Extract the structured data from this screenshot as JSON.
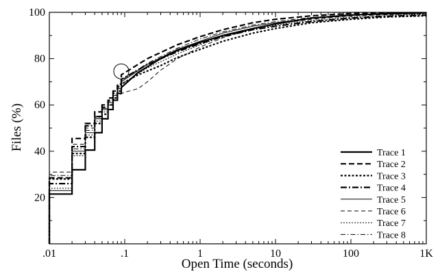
{
  "chart_data": {
    "type": "line",
    "title": "",
    "xlabel": "Open Time (seconds)",
    "ylabel": "Files (%)",
    "x_scale": "log",
    "xlim": [
      0.01,
      1000
    ],
    "ylim": [
      0,
      100
    ],
    "x_ticks": [
      {
        "value": 0.01,
        "label": ".01"
      },
      {
        "value": 0.1,
        "label": ".1"
      },
      {
        "value": 1,
        "label": "1"
      },
      {
        "value": 10,
        "label": "10"
      },
      {
        "value": 100,
        "label": "100"
      },
      {
        "value": 1000,
        "label": "1K"
      }
    ],
    "y_ticks": [
      {
        "value": 20,
        "label": "20"
      },
      {
        "value": 40,
        "label": "40"
      },
      {
        "value": 60,
        "label": "60"
      },
      {
        "value": 80,
        "label": "80"
      },
      {
        "value": 100,
        "label": "100"
      }
    ],
    "grid": false,
    "legend_position": "bottom-right",
    "annotation": {
      "type": "circle",
      "x": 0.09,
      "y": 74.5
    },
    "series": [
      {
        "name": "Trace 1",
        "style": "solid",
        "weight": "thick",
        "points": [
          [
            0.01,
            0
          ],
          [
            0.01,
            21.5
          ],
          [
            0.02,
            21.5
          ],
          [
            0.02,
            32
          ],
          [
            0.03,
            32
          ],
          [
            0.03,
            40.5
          ],
          [
            0.04,
            40.5
          ],
          [
            0.04,
            48
          ],
          [
            0.05,
            48
          ],
          [
            0.05,
            54
          ],
          [
            0.06,
            54
          ],
          [
            0.06,
            58
          ],
          [
            0.07,
            58
          ],
          [
            0.07,
            62
          ],
          [
            0.08,
            62
          ],
          [
            0.08,
            65
          ],
          [
            0.09,
            65
          ],
          [
            0.09,
            67.5
          ],
          [
            0.15,
            74
          ],
          [
            0.3,
            80
          ],
          [
            0.5,
            83.5
          ],
          [
            1,
            87
          ],
          [
            2,
            90
          ],
          [
            5,
            93
          ],
          [
            10,
            95
          ],
          [
            30,
            97.5
          ],
          [
            100,
            98.8
          ],
          [
            300,
            99.5
          ],
          [
            1000,
            99.8
          ]
        ]
      },
      {
        "name": "Trace 2",
        "style": "dashed",
        "weight": "thick",
        "points": [
          [
            0.01,
            0
          ],
          [
            0.01,
            28.5
          ],
          [
            0.02,
            28.5
          ],
          [
            0.02,
            45.5
          ],
          [
            0.03,
            45.5
          ],
          [
            0.03,
            52
          ],
          [
            0.04,
            52
          ],
          [
            0.04,
            57
          ],
          [
            0.05,
            57
          ],
          [
            0.05,
            60
          ],
          [
            0.06,
            60
          ],
          [
            0.06,
            63
          ],
          [
            0.07,
            63
          ],
          [
            0.07,
            66
          ],
          [
            0.08,
            66
          ],
          [
            0.08,
            69
          ],
          [
            0.09,
            69
          ],
          [
            0.09,
            73
          ],
          [
            0.2,
            80
          ],
          [
            0.5,
            86
          ],
          [
            1,
            89.5
          ],
          [
            2,
            92.5
          ],
          [
            5,
            95.5
          ],
          [
            10,
            97
          ],
          [
            30,
            98.5
          ],
          [
            100,
            99.5
          ],
          [
            1000,
            99.8
          ]
        ]
      },
      {
        "name": "Trace 3",
        "style": "dotted",
        "weight": "thick",
        "points": [
          [
            0.01,
            0
          ],
          [
            0.01,
            28
          ],
          [
            0.02,
            28
          ],
          [
            0.02,
            39
          ],
          [
            0.03,
            39
          ],
          [
            0.03,
            46
          ],
          [
            0.04,
            46
          ],
          [
            0.04,
            52
          ],
          [
            0.05,
            52
          ],
          [
            0.05,
            56
          ],
          [
            0.06,
            56
          ],
          [
            0.06,
            60
          ],
          [
            0.07,
            60
          ],
          [
            0.07,
            63
          ],
          [
            0.08,
            63
          ],
          [
            0.08,
            66
          ],
          [
            0.09,
            66
          ],
          [
            0.09,
            69
          ],
          [
            0.15,
            73
          ],
          [
            0.3,
            77
          ],
          [
            0.5,
            80.5
          ],
          [
            1,
            84
          ],
          [
            2,
            87.5
          ],
          [
            5,
            91
          ],
          [
            10,
            93
          ],
          [
            30,
            95.5
          ],
          [
            100,
            97
          ],
          [
            300,
            98
          ],
          [
            1000,
            98.5
          ]
        ]
      },
      {
        "name": "Trace 4",
        "style": "dashdot",
        "weight": "thick",
        "points": [
          [
            0.01,
            0
          ],
          [
            0.01,
            26
          ],
          [
            0.02,
            26
          ],
          [
            0.02,
            42
          ],
          [
            0.03,
            42
          ],
          [
            0.03,
            51
          ],
          [
            0.04,
            51
          ],
          [
            0.04,
            55
          ],
          [
            0.05,
            55
          ],
          [
            0.05,
            59
          ],
          [
            0.06,
            59
          ],
          [
            0.06,
            62
          ],
          [
            0.07,
            62
          ],
          [
            0.07,
            65
          ],
          [
            0.08,
            65
          ],
          [
            0.08,
            68
          ],
          [
            0.09,
            68
          ],
          [
            0.09,
            71
          ],
          [
            0.2,
            77.5
          ],
          [
            0.5,
            83
          ],
          [
            1,
            86.5
          ],
          [
            2,
            89.5
          ],
          [
            5,
            92.5
          ],
          [
            10,
            94
          ],
          [
            30,
            96
          ],
          [
            100,
            97.5
          ],
          [
            300,
            98.3
          ],
          [
            1000,
            98.8
          ]
        ]
      },
      {
        "name": "Trace 5",
        "style": "solid",
        "weight": "thin",
        "points": [
          [
            0.01,
            0
          ],
          [
            0.01,
            23
          ],
          [
            0.02,
            23
          ],
          [
            0.02,
            40
          ],
          [
            0.03,
            40
          ],
          [
            0.03,
            48
          ],
          [
            0.04,
            48
          ],
          [
            0.04,
            54
          ],
          [
            0.05,
            54
          ],
          [
            0.05,
            58
          ],
          [
            0.06,
            58
          ],
          [
            0.06,
            61
          ],
          [
            0.07,
            61
          ],
          [
            0.07,
            64
          ],
          [
            0.08,
            64
          ],
          [
            0.08,
            67
          ],
          [
            0.09,
            67
          ],
          [
            0.09,
            70
          ],
          [
            0.2,
            77.5
          ],
          [
            0.5,
            84
          ],
          [
            1,
            87.5
          ],
          [
            2,
            91
          ],
          [
            5,
            94
          ],
          [
            10,
            95.5
          ],
          [
            30,
            97.5
          ],
          [
            100,
            98.8
          ],
          [
            1000,
            99.6
          ]
        ]
      },
      {
        "name": "Trace 6",
        "style": "dashed",
        "weight": "thin",
        "points": [
          [
            0.01,
            0
          ],
          [
            0.01,
            31
          ],
          [
            0.02,
            31
          ],
          [
            0.02,
            43
          ],
          [
            0.03,
            43
          ],
          [
            0.03,
            50
          ],
          [
            0.04,
            50
          ],
          [
            0.04,
            55
          ],
          [
            0.05,
            55
          ],
          [
            0.05,
            58
          ],
          [
            0.06,
            58
          ],
          [
            0.06,
            60
          ],
          [
            0.07,
            60
          ],
          [
            0.07,
            62.5
          ],
          [
            0.08,
            62.5
          ],
          [
            0.08,
            64
          ],
          [
            0.1,
            65.5
          ],
          [
            0.15,
            67
          ],
          [
            0.2,
            70
          ],
          [
            0.3,
            75
          ],
          [
            0.5,
            80
          ],
          [
            1,
            85
          ],
          [
            2,
            89
          ],
          [
            5,
            93
          ],
          [
            10,
            95
          ],
          [
            30,
            97
          ],
          [
            100,
            98.5
          ],
          [
            1000,
            99.5
          ]
        ]
      },
      {
        "name": "Trace 7",
        "style": "dotted",
        "weight": "thin",
        "points": [
          [
            0.01,
            0
          ],
          [
            0.01,
            24
          ],
          [
            0.02,
            24
          ],
          [
            0.02,
            38
          ],
          [
            0.03,
            38
          ],
          [
            0.03,
            47
          ],
          [
            0.04,
            47
          ],
          [
            0.04,
            53
          ],
          [
            0.05,
            53
          ],
          [
            0.05,
            57
          ],
          [
            0.06,
            57
          ],
          [
            0.06,
            60
          ],
          [
            0.07,
            60
          ],
          [
            0.07,
            63
          ],
          [
            0.08,
            63
          ],
          [
            0.08,
            66
          ],
          [
            0.09,
            66
          ],
          [
            0.09,
            69
          ],
          [
            0.2,
            76
          ],
          [
            0.5,
            82
          ],
          [
            1,
            86
          ],
          [
            2,
            89.5
          ],
          [
            5,
            92.5
          ],
          [
            10,
            94.5
          ],
          [
            30,
            96.5
          ],
          [
            100,
            98
          ],
          [
            1000,
            99.2
          ]
        ]
      },
      {
        "name": "Trace 8",
        "style": "dashdot",
        "weight": "thin",
        "points": [
          [
            0.01,
            0
          ],
          [
            0.01,
            29.5
          ],
          [
            0.02,
            29.5
          ],
          [
            0.02,
            41
          ],
          [
            0.03,
            41
          ],
          [
            0.03,
            49
          ],
          [
            0.04,
            49
          ],
          [
            0.04,
            54.5
          ],
          [
            0.05,
            54.5
          ],
          [
            0.05,
            58.5
          ],
          [
            0.06,
            58.5
          ],
          [
            0.06,
            61.5
          ],
          [
            0.07,
            61.5
          ],
          [
            0.07,
            64.5
          ],
          [
            0.08,
            64.5
          ],
          [
            0.08,
            67.5
          ],
          [
            0.09,
            67.5
          ],
          [
            0.09,
            70.5
          ],
          [
            0.2,
            78
          ],
          [
            0.5,
            84.5
          ],
          [
            1,
            88.5
          ],
          [
            2,
            91.5
          ],
          [
            5,
            94.5
          ],
          [
            10,
            96
          ],
          [
            30,
            97.8
          ],
          [
            100,
            99
          ],
          [
            1000,
            99.6
          ]
        ]
      }
    ]
  }
}
